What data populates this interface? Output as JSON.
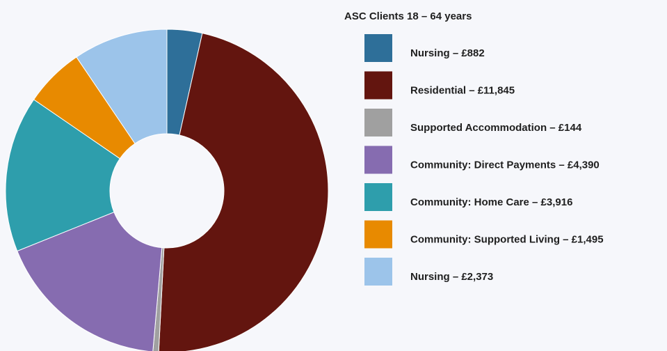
{
  "chart_data": {
    "type": "donut",
    "title": "ASC Clients 18 – 64 years",
    "categories": [
      "Nursing – £882",
      "Residential – £11,845",
      "Supported Accommodation – £144",
      "Community: Direct Payments – £4,390",
      "Community: Home Care – £3,916",
      "Community: Supported Living – £1,495",
      "Nursing – £2,373"
    ],
    "values": [
      882,
      11845,
      144,
      4390,
      3916,
      1495,
      2373
    ],
    "colors": [
      "#2e6f99",
      "#63150f",
      "#a0a0a0",
      "#866cb0",
      "#2e9eac",
      "#e88a00",
      "#9cc4ea"
    ],
    "legend": "right"
  }
}
